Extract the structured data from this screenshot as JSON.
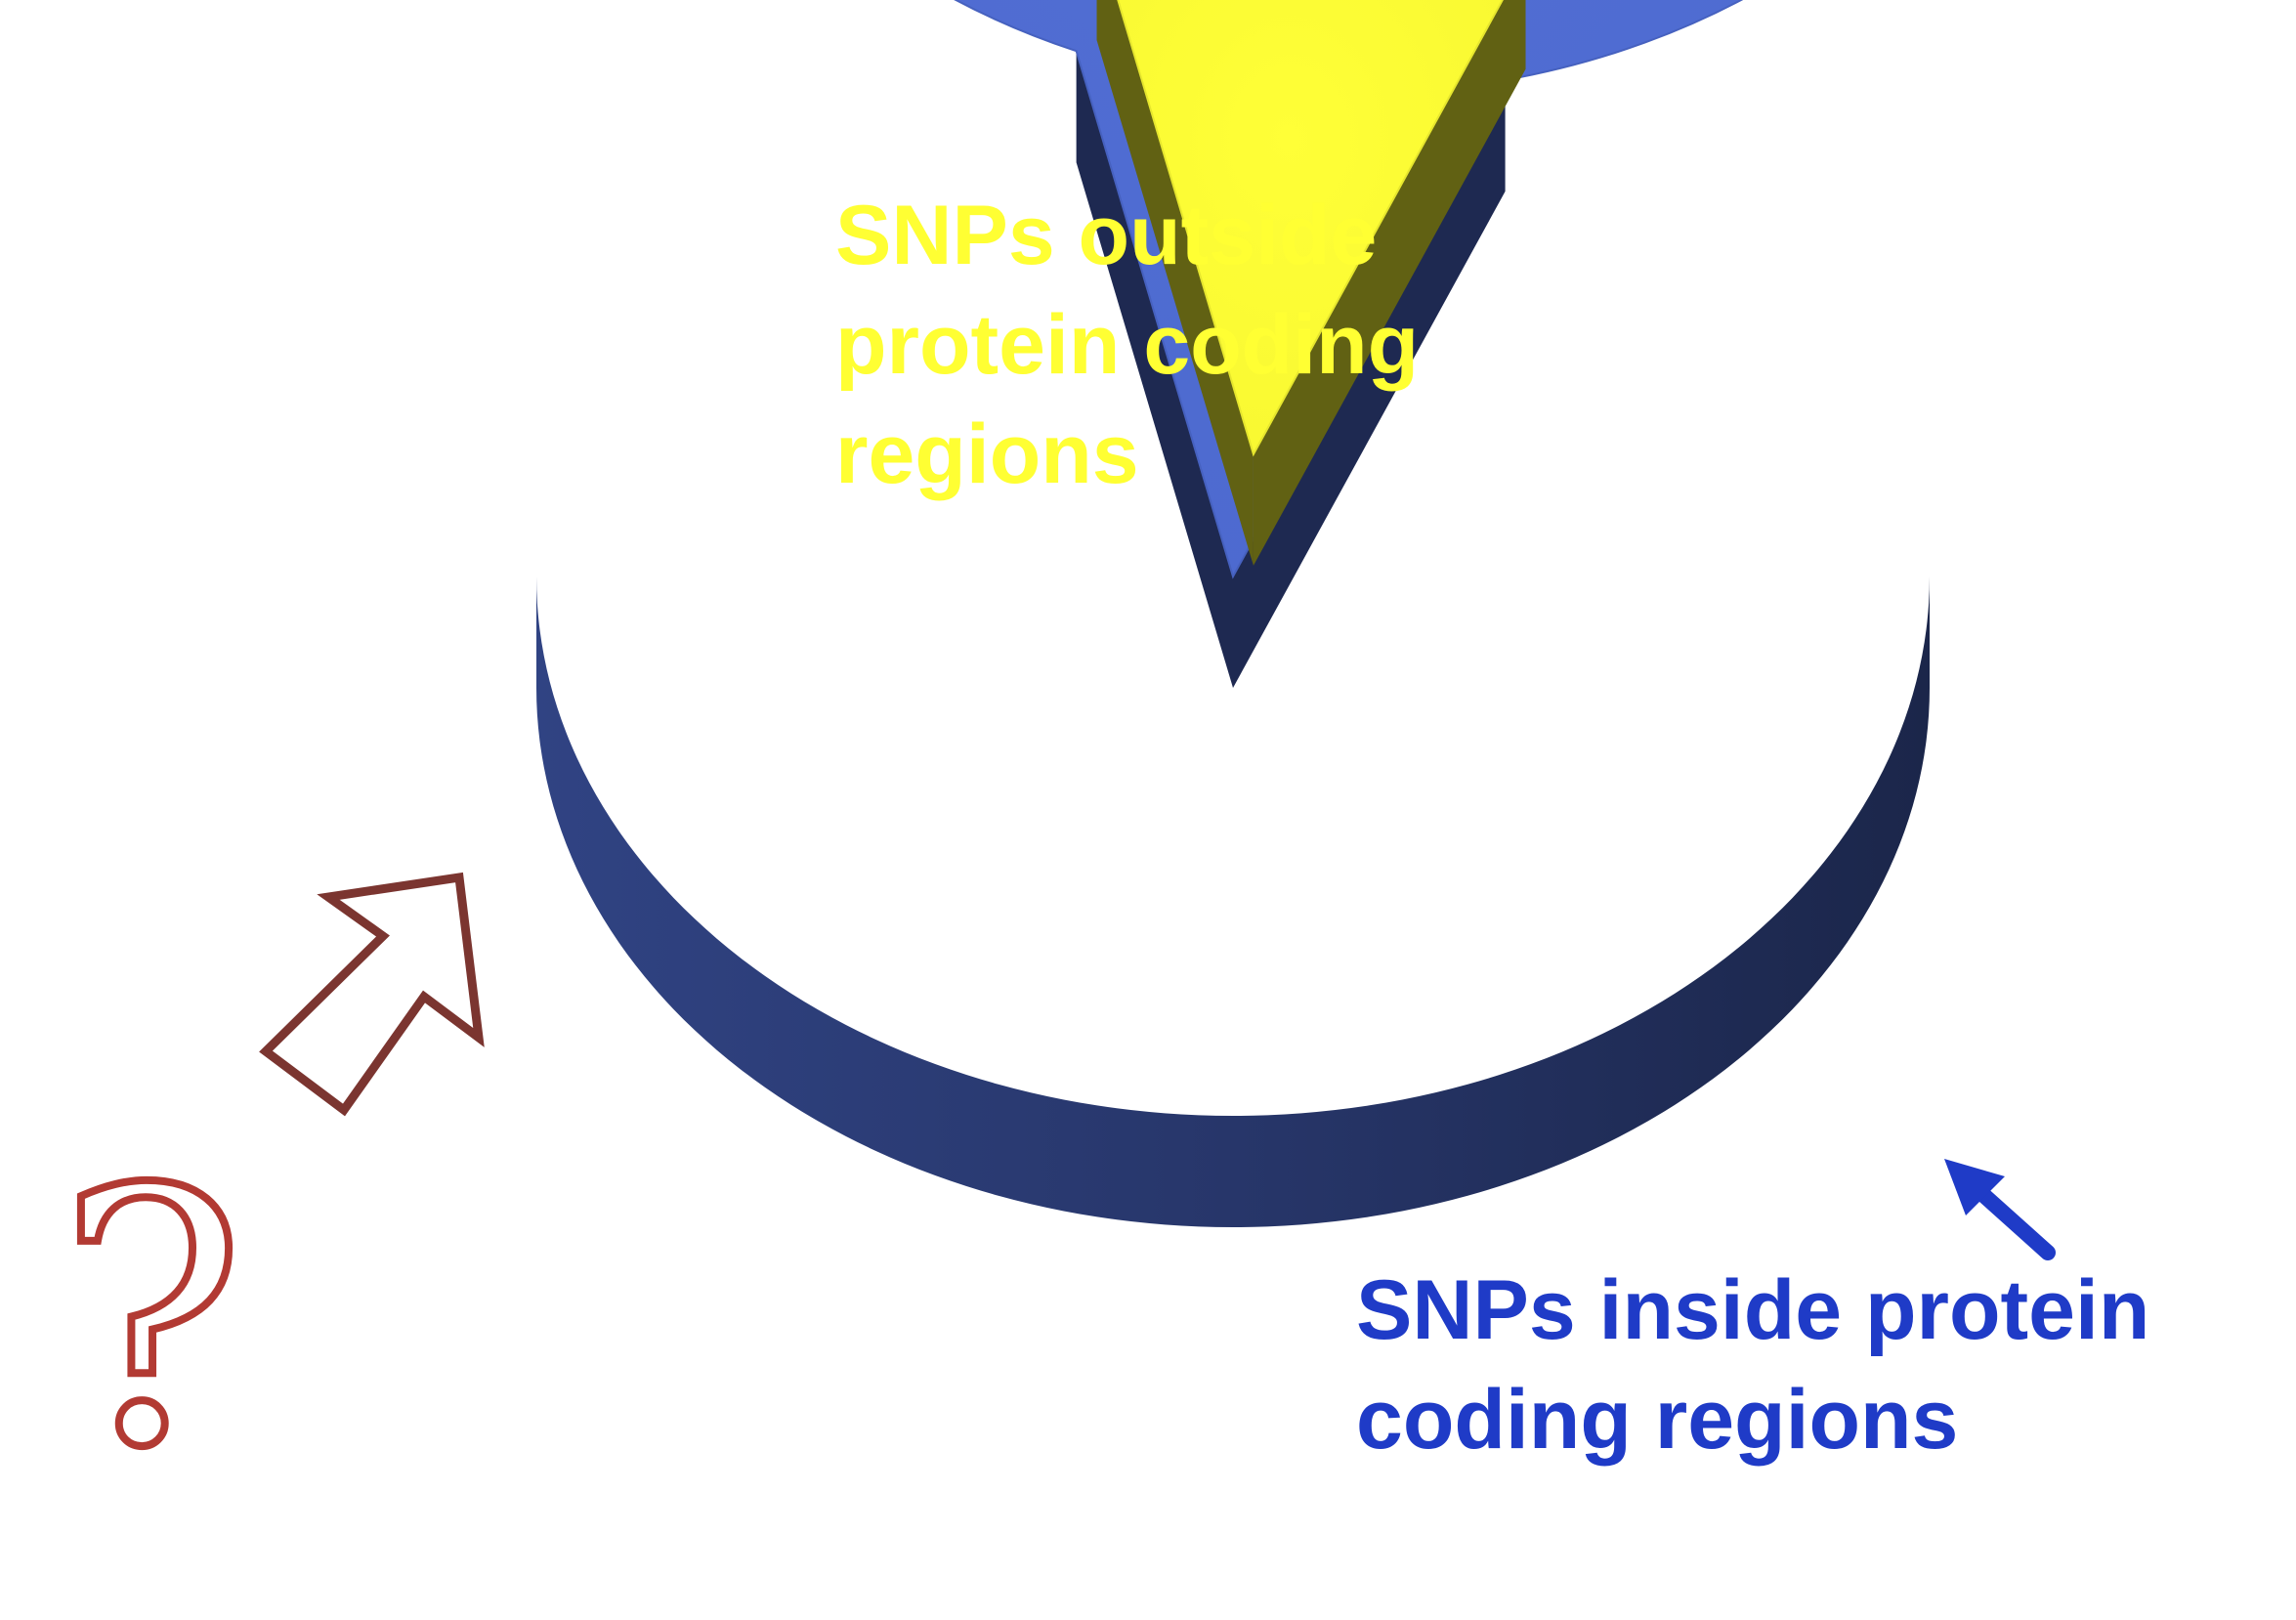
{
  "chart_data": {
    "type": "pie",
    "style": "3d",
    "title": "",
    "slices": [
      {
        "label": "SNPs outside protein coding regions",
        "label_lines": [
          "SNPs outside",
          "protein coding",
          "regions"
        ],
        "value": 0.9,
        "color": "#4E6CD4",
        "label_color": "#FFFF33",
        "exploded": false
      },
      {
        "label": "SNPs inside protein coding regions",
        "label_lines": [
          "SNPs inside protein",
          "coding regions"
        ],
        "value": 0.1,
        "color": "#FFFF33",
        "label_color": "#1F3BC7",
        "exploded": true
      }
    ],
    "annotations": [
      {
        "kind": "arrow",
        "icon": "arrow-up-right-icon",
        "color": "#1F3BC7",
        "points_to": "SNPs inside protein coding regions"
      },
      {
        "kind": "outline-arrow",
        "icon": "outline-arrow-up-right-icon",
        "color": "#7B3530",
        "points_to": "SNPs outside protein coding regions"
      },
      {
        "kind": "symbol",
        "icon": "question-mark-icon",
        "text": "?",
        "color": "#B23A33"
      }
    ]
  }
}
